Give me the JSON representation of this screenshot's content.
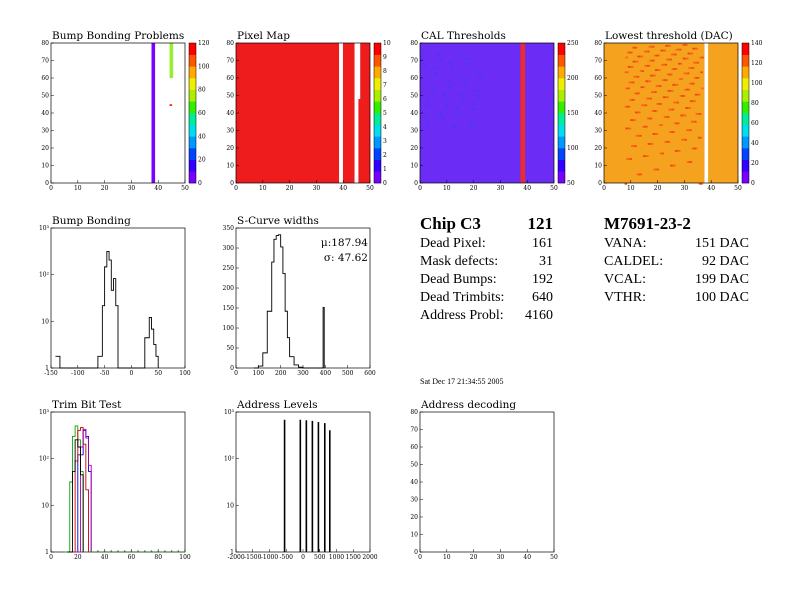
{
  "chip": {
    "title": "Chip C3",
    "total": "121",
    "rows": [
      {
        "label": "Dead Pixel:",
        "value": "161"
      },
      {
        "label": "Mask defects:",
        "value": "31"
      },
      {
        "label": "Dead Bumps:",
        "value": "192"
      },
      {
        "label": "Dead Trimbits:",
        "value": "640"
      },
      {
        "label": "Address Probl:",
        "value": "4160"
      }
    ]
  },
  "module": {
    "title": "M7691-23-2",
    "rows": [
      {
        "label": "VANA:",
        "value": "151 DAC"
      },
      {
        "label": "CALDEL:",
        "value": "92 DAC"
      },
      {
        "label": "VCAL:",
        "value": "199 DAC"
      },
      {
        "label": "VTHR:",
        "value": "100 DAC"
      }
    ]
  },
  "date": "Sat Dec 17 21:34:55 2005",
  "chart_data": [
    {
      "id": "bump-bonding-problems",
      "type": "heatmap",
      "title": "Bump Bonding Problems",
      "xlim": [
        0,
        52
      ],
      "ylim": [
        0,
        80
      ],
      "xticks": [
        "0",
        "10",
        "20",
        "30",
        "40",
        "50"
      ],
      "yticks": [
        "0",
        "10",
        "20",
        "30",
        "40",
        "50",
        "60",
        "70",
        "80"
      ],
      "zticks": [
        "0",
        "20",
        "40",
        "60",
        "80",
        "100",
        "120"
      ],
      "features": [
        {
          "col": 39,
          "rows": [
            0,
            80
          ],
          "value": 6
        },
        {
          "col": 46,
          "rows": [
            60,
            80
          ],
          "value": 70
        },
        {
          "col": 46,
          "rows": [
            44,
            45
          ],
          "value": 125
        }
      ]
    },
    {
      "id": "pixel-map",
      "type": "heatmap",
      "title": "Pixel Map",
      "xlim": [
        0,
        52
      ],
      "ylim": [
        0,
        80
      ],
      "xticks": [
        "0",
        "10",
        "20",
        "30",
        "40",
        "50"
      ],
      "yticks": [
        "0",
        "10",
        "20",
        "30",
        "40",
        "50",
        "60",
        "70",
        "80"
      ],
      "zticks": [
        "0",
        "1",
        "2",
        "3",
        "4",
        "5",
        "6",
        "7",
        "8",
        "9",
        "10"
      ],
      "fill_value": 10,
      "empty_columns": [
        40,
        46
      ],
      "empty_partial": {
        "col": 47,
        "rows": [
          48,
          80
        ]
      }
    },
    {
      "id": "cal-thresholds",
      "type": "heatmap",
      "title": "CAL Thresholds",
      "xlim": [
        0,
        52
      ],
      "ylim": [
        0,
        80
      ],
      "xticks": [
        "0",
        "10",
        "20",
        "30",
        "40",
        "50"
      ],
      "yticks": [
        "0",
        "10",
        "20",
        "30",
        "40",
        "50",
        "60",
        "70",
        "80"
      ],
      "zticks": [
        "50",
        "100",
        "150",
        "200",
        "250"
      ],
      "fill_value": 30,
      "hot_column": 39
    },
    {
      "id": "lowest-threshold",
      "type": "heatmap",
      "title": "Lowest threshold (DAC)",
      "xlim": [
        0,
        52
      ],
      "ylim": [
        0,
        80
      ],
      "xticks": [
        "0",
        "10",
        "20",
        "30",
        "40",
        "50"
      ],
      "yticks": [
        "0",
        "10",
        "20",
        "30",
        "40",
        "50",
        "60",
        "70",
        "80"
      ],
      "zticks": [
        "0",
        "20",
        "40",
        "60",
        "80",
        "100",
        "120",
        "140"
      ],
      "fill_value": 120,
      "empty_column": 39
    },
    {
      "id": "bump-bonding",
      "type": "line",
      "title": "Bump Bonding",
      "xlim": [
        -150,
        150
      ],
      "ylim": [
        0.5,
        2000
      ],
      "log_y": true,
      "xticks": [
        "-150",
        "-100",
        "-50",
        "0",
        "50",
        "100"
      ],
      "yticks": [
        "1",
        "10",
        "10²",
        "10³"
      ],
      "x": [
        -140,
        -130,
        -60,
        -45,
        -35,
        -30,
        -25,
        -20,
        -15,
        -10,
        -5,
        0,
        50,
        60,
        70,
        75,
        80,
        85,
        90
      ],
      "y": [
        1,
        0,
        0,
        1,
        20,
        200,
        500,
        300,
        50,
        100,
        20,
        0,
        0,
        3,
        10,
        5,
        2,
        1,
        0
      ]
    },
    {
      "id": "s-curve-widths",
      "type": "line",
      "title": "S-Curve widths",
      "xlim": [
        0,
        600
      ],
      "ylim": [
        0,
        370
      ],
      "xticks": [
        "0",
        "100",
        "200",
        "300",
        "400",
        "500",
        "600"
      ],
      "yticks": [
        "0",
        "50",
        "100",
        "150",
        "200",
        "250",
        "300",
        "350"
      ],
      "stats": [
        "μ:187.94",
        "σ: 47.62"
      ],
      "x": [
        80,
        100,
        120,
        140,
        160,
        170,
        180,
        190,
        200,
        210,
        220,
        230,
        240,
        260,
        280,
        300,
        385,
        390,
        395
      ],
      "y": [
        0,
        5,
        40,
        150,
        280,
        340,
        350,
        352,
        320,
        250,
        150,
        80,
        30,
        8,
        2,
        0,
        0,
        160,
        0
      ]
    },
    {
      "id": "trim-bit-test",
      "type": "line",
      "title": "Trim Bit Test",
      "xlim": [
        0,
        100
      ],
      "ylim": [
        0.5,
        5000
      ],
      "log_y": true,
      "xticks": [
        "0",
        "20",
        "40",
        "60",
        "80",
        "100"
      ],
      "yticks": [
        "1",
        "10",
        "10²",
        "10³"
      ],
      "series": [
        {
          "color": "#00aa00",
          "x": [
            10,
            14,
            16,
            18,
            20,
            22,
            24
          ],
          "y": [
            0,
            50,
            1000,
            2000,
            800,
            100,
            0
          ]
        },
        {
          "color": "#0000dd",
          "x": [
            16,
            20,
            24,
            26,
            28,
            30
          ],
          "y": [
            0,
            300,
            1500,
            1000,
            100,
            0
          ]
        },
        {
          "color": "#cc0000",
          "x": [
            14,
            18,
            20,
            22,
            24,
            26,
            28
          ],
          "y": [
            0,
            200,
            1500,
            1800,
            600,
            30,
            0
          ]
        },
        {
          "color": "#aa00aa",
          "x": [
            18,
            22,
            24,
            26,
            28,
            30
          ],
          "y": [
            0,
            500,
            1600,
            900,
            150,
            0
          ]
        },
        {
          "color": "#000000",
          "x": [
            12,
            16,
            18,
            20,
            22,
            24
          ],
          "y": [
            0,
            100,
            800,
            500,
            80,
            0
          ]
        }
      ]
    },
    {
      "id": "address-levels",
      "type": "line",
      "title": "Address Levels",
      "xlim": [
        -2000,
        2000
      ],
      "ylim": [
        0.5,
        5000
      ],
      "log_y": true,
      "xticks": [
        "-2000",
        "-1500",
        "-1000",
        "-500",
        "0",
        "500",
        "1000",
        "1500",
        "2000"
      ],
      "yticks": [
        "1",
        "10",
        "10²",
        "10³"
      ],
      "x": [
        -550,
        -80,
        100,
        280,
        460,
        650,
        800
      ],
      "y": [
        3000,
        3000,
        2900,
        2800,
        2600,
        2400,
        1500
      ]
    },
    {
      "id": "address-decoding",
      "type": "scatter",
      "title": "Address decoding",
      "xlim": [
        0,
        52
      ],
      "ylim": [
        0,
        80
      ],
      "xticks": [
        "0",
        "10",
        "20",
        "30",
        "40",
        "50"
      ],
      "yticks": [
        "0",
        "10",
        "20",
        "30",
        "40",
        "50",
        "60",
        "70",
        "80"
      ],
      "x": [],
      "y": []
    }
  ]
}
